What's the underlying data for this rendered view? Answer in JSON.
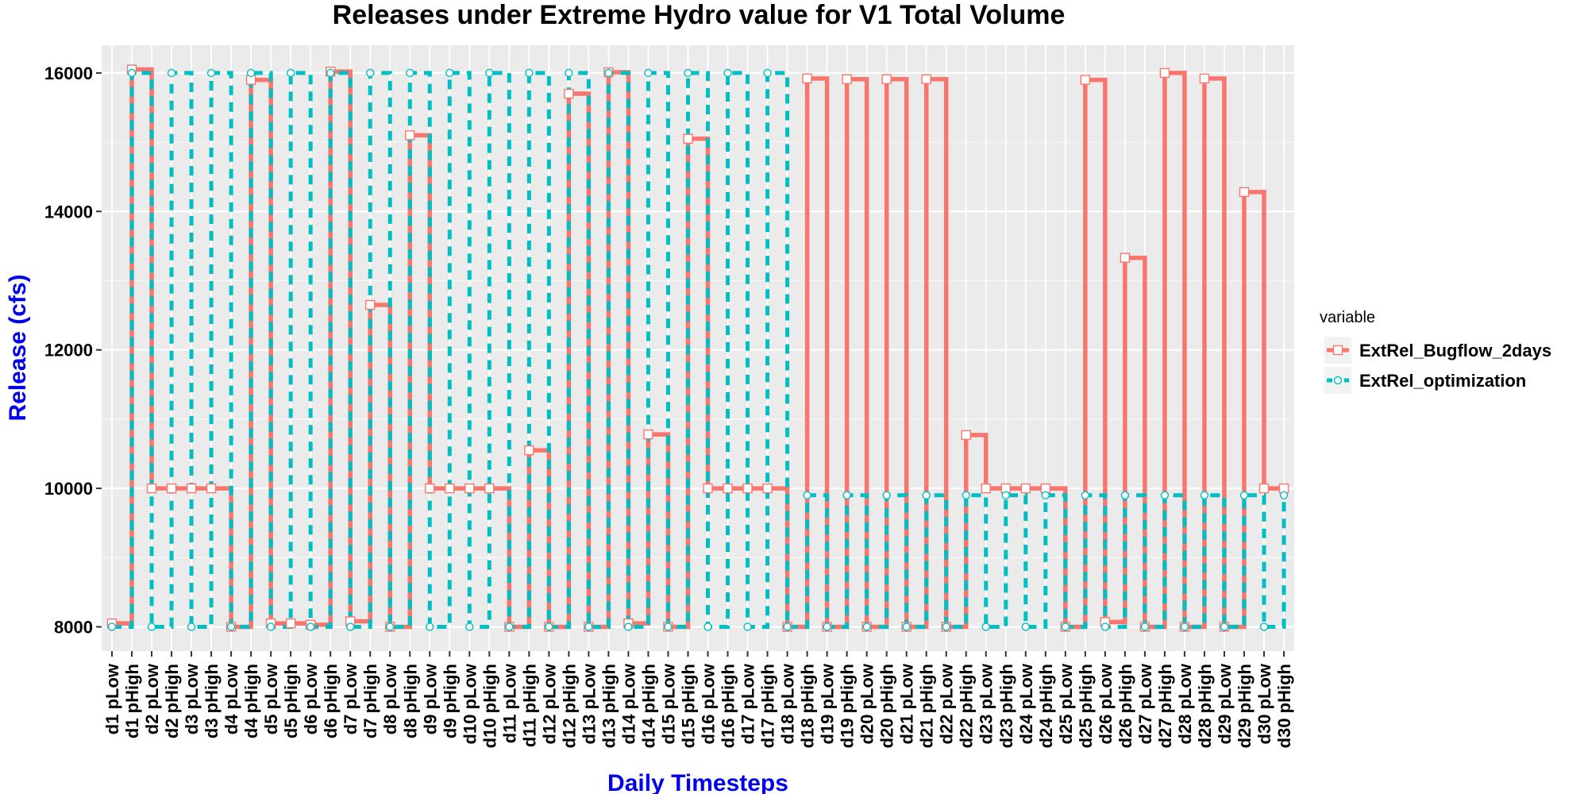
{
  "chart_data": {
    "type": "line",
    "step": true,
    "title": "Releases under Extreme Hydro value for V1 Total Volume",
    "xlabel": "Daily Timesteps",
    "ylabel": "Release (cfs)",
    "ylim": [
      7650,
      16400
    ],
    "yticks": [
      8000,
      10000,
      12000,
      14000,
      16000
    ],
    "grid": true,
    "legend": {
      "title": "variable",
      "position": "right"
    },
    "categories": [
      "d1 pLow",
      "d1 pHigh",
      "d2 pLow",
      "d2 pHigh",
      "d3 pLow",
      "d3 pHigh",
      "d4 pLow",
      "d4 pHigh",
      "d5 pLow",
      "d5 pHigh",
      "d6 pLow",
      "d6 pHigh",
      "d7 pLow",
      "d7 pHigh",
      "d8 pLow",
      "d8 pHigh",
      "d9 pLow",
      "d9 pHigh",
      "d10 pLow",
      "d10 pHigh",
      "d11 pLow",
      "d11 pHigh",
      "d12 pLow",
      "d12 pHigh",
      "d13 pLow",
      "d13 pHigh",
      "d14 pLow",
      "d14 pHigh",
      "d15 pLow",
      "d15 pHigh",
      "d16 pLow",
      "d16 pHigh",
      "d17 pLow",
      "d17 pHigh",
      "d18 pLow",
      "d18 pHigh",
      "d19 pLow",
      "d19 pHigh",
      "d20 pLow",
      "d20 pHigh",
      "d21 pLow",
      "d21 pHigh",
      "d22 pLow",
      "d22 pHigh",
      "d23 pLow",
      "d23 pHigh",
      "d24 pLow",
      "d24 pHigh",
      "d25 pLow",
      "d25 pHigh",
      "d26 pLow",
      "d26 pHigh",
      "d27 pLow",
      "d27 pHigh",
      "d28 pLow",
      "d28 pHigh",
      "d29 pLow",
      "d29 pHigh",
      "d30 pLow",
      "d30 pHigh"
    ],
    "series": [
      {
        "name": "ExtRel_Bugflow_2days",
        "color": "#F8766D",
        "line_style": "solid",
        "marker": "square",
        "values": [
          8050,
          16050,
          10000,
          10000,
          10000,
          10000,
          8000,
          15900,
          8050,
          8050,
          8030,
          16020,
          8080,
          12650,
          8000,
          15100,
          10000,
          10000,
          10000,
          10000,
          8000,
          10550,
          8000,
          15700,
          8000,
          16010,
          8050,
          10780,
          8000,
          15050,
          10000,
          10000,
          10000,
          10000,
          8000,
          15920,
          8000,
          15910,
          8000,
          15910,
          8000,
          15910,
          8000,
          10770,
          10000,
          10000,
          10000,
          10000,
          8000,
          15900,
          8070,
          13330,
          8000,
          16000,
          8000,
          15920,
          8000,
          14280,
          10000,
          10000
        ]
      },
      {
        "name": "ExtRel_optimization",
        "color": "#00BFC4",
        "line_style": "dashed",
        "marker": "circle",
        "values": [
          8000,
          16000,
          8000,
          16000,
          8000,
          16000,
          8000,
          16000,
          8000,
          16000,
          8000,
          16000,
          8000,
          16000,
          8000,
          16000,
          8000,
          16000,
          8000,
          16000,
          8000,
          16000,
          8000,
          16000,
          8000,
          16000,
          8000,
          16000,
          8000,
          16000,
          8000,
          16000,
          8000,
          16000,
          8000,
          9900,
          8000,
          9900,
          8000,
          9900,
          8000,
          9900,
          8000,
          9900,
          8000,
          9900,
          8000,
          9900,
          8000,
          9900,
          8000,
          9900,
          8000,
          9900,
          8000,
          9900,
          8000,
          9900,
          8000,
          9900
        ]
      }
    ]
  }
}
